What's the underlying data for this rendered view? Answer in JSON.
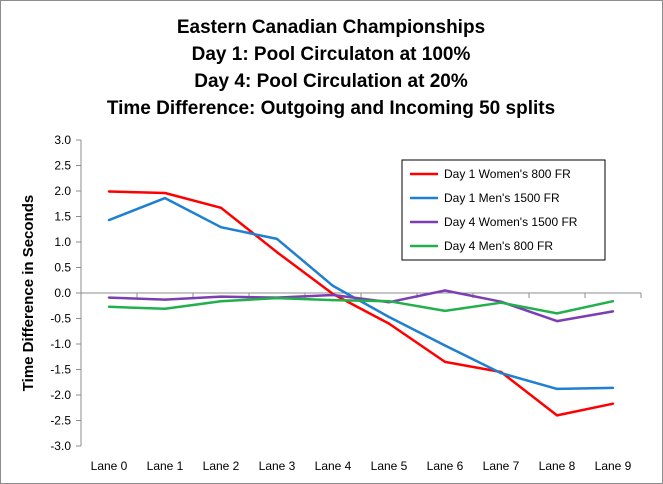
{
  "chart_data": {
    "type": "line",
    "title_lines": [
      "Eastern Canadian Championships",
      "Day 1: Pool Circulaton at 100%",
      "Day 4: Pool Circulation at 20%",
      "Time Difference: Outgoing and Incoming 50 splits"
    ],
    "xlabel": "",
    "ylabel": "Time Difference in Seconds",
    "categories": [
      "Lane 0",
      "Lane 1",
      "Lane 2",
      "Lane 3",
      "Lane 4",
      "Lane 5",
      "Lane 6",
      "Lane 7",
      "Lane 8",
      "Lane 9"
    ],
    "ylim": [
      -3.0,
      3.0
    ],
    "ytick_step": 0.5,
    "ytick_labels": [
      "3.0",
      "2.5",
      "2.0",
      "1.5",
      "1.0",
      "0.5",
      "0.0",
      "-0.5",
      "-1.0",
      "-1.5",
      "-2.0",
      "-2.5",
      "-3.0"
    ],
    "grid": false,
    "legend_position": "top-right",
    "series": [
      {
        "name": "Day 1 Women's 800 FR",
        "color": "#ff0000",
        "values": [
          1.99,
          1.96,
          1.67,
          0.8,
          -0.02,
          -0.6,
          -1.35,
          -1.55,
          -2.4,
          -2.17
        ]
      },
      {
        "name": "Day 1 Men's 1500 FR",
        "color": "#1f7fd0",
        "values": [
          1.43,
          1.86,
          1.29,
          1.06,
          0.14,
          -0.47,
          -1.03,
          -1.57,
          -1.88,
          -1.86
        ]
      },
      {
        "name": "Day 4 Women's 1500 FR",
        "color": "#7b3fb3",
        "values": [
          -0.09,
          -0.13,
          -0.07,
          -0.09,
          -0.04,
          -0.18,
          0.05,
          -0.17,
          -0.55,
          -0.36
        ]
      },
      {
        "name": "Day 4 Men's 800 FR",
        "color": "#22b04c",
        "values": [
          -0.27,
          -0.31,
          -0.16,
          -0.1,
          -0.14,
          -0.16,
          -0.35,
          -0.19,
          -0.4,
          -0.16
        ]
      }
    ]
  }
}
